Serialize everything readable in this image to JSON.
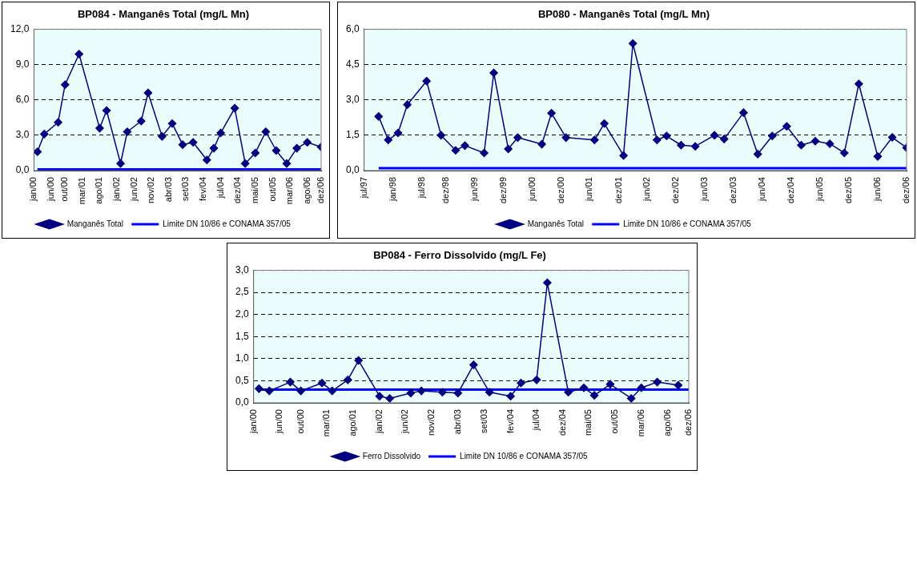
{
  "chart_data": [
    {
      "type": "line",
      "title": "BP084 - Manganês Total (mg/L Mn)",
      "xlim": [
        "2000-01",
        "2006-12"
      ],
      "xticks": [
        {
          "value": "2000-01",
          "label": "jan/00"
        },
        {
          "value": "2000-06",
          "label": "jun/00"
        },
        {
          "value": "2000-10",
          "label": "out/00"
        },
        {
          "value": "2001-03",
          "label": "mar/01"
        },
        {
          "value": "2001-08",
          "label": "ago/01"
        },
        {
          "value": "2002-01",
          "label": "jan/02"
        },
        {
          "value": "2002-06",
          "label": "jun/02"
        },
        {
          "value": "2002-11",
          "label": "nov/02"
        },
        {
          "value": "2003-04",
          "label": "abr/03"
        },
        {
          "value": "2003-09",
          "label": "set/03"
        },
        {
          "value": "2004-02",
          "label": "fev/04"
        },
        {
          "value": "2004-07",
          "label": "jul/04"
        },
        {
          "value": "2004-12",
          "label": "dez/04"
        },
        {
          "value": "2005-05",
          "label": "mai/05"
        },
        {
          "value": "2005-10",
          "label": "out/05"
        },
        {
          "value": "2006-03",
          "label": "mar/06"
        },
        {
          "value": "2006-08",
          "label": "ago/06"
        },
        {
          "value": "2006-12",
          "label": "dez/06"
        }
      ],
      "ylim": [
        0,
        12
      ],
      "yticks": [
        {
          "value": 0,
          "label": "0,0"
        },
        {
          "value": 3,
          "label": "3,0"
        },
        {
          "value": 6,
          "label": "6,0"
        },
        {
          "value": 9,
          "label": "9,0"
        },
        {
          "value": 12,
          "label": "12,0"
        }
      ],
      "grid": "y",
      "legend": "bottom",
      "series": [
        {
          "name": "Manganês Total",
          "color": "#000080",
          "marker": "diamond",
          "x": [
            "2000-02",
            "2000-04",
            "2000-08",
            "2000-10",
            "2001-02",
            "2001-08",
            "2001-10",
            "2002-02",
            "2002-04",
            "2002-08",
            "2002-10",
            "2003-02",
            "2003-05",
            "2003-08",
            "2003-11",
            "2004-03",
            "2004-05",
            "2004-07",
            "2004-11",
            "2005-02",
            "2005-05",
            "2005-08",
            "2005-11",
            "2006-02",
            "2006-05",
            "2006-08",
            "2006-12"
          ],
          "values": [
            1.6,
            3.1,
            4.1,
            7.3,
            9.9,
            3.6,
            5.1,
            0.6,
            3.3,
            4.2,
            6.6,
            2.9,
            4.0,
            2.2,
            2.4,
            0.9,
            1.9,
            3.2,
            5.3,
            0.6,
            1.5,
            3.3,
            1.7,
            0.6,
            1.9,
            2.4,
            2.0
          ]
        },
        {
          "name": "Limite DN 10/86 e CONAMA 357/05",
          "color": "#0000ff",
          "marker": "none",
          "x": [
            "2000-02",
            "2006-12"
          ],
          "values": [
            0.1,
            0.1
          ]
        }
      ]
    },
    {
      "type": "line",
      "title": "BP080 - Manganês Total (mg/L Mn)",
      "xlim": [
        "1997-07",
        "2006-12"
      ],
      "xticks": [
        {
          "value": "1997-07",
          "label": "jul/97"
        },
        {
          "value": "1998-01",
          "label": "jan/98"
        },
        {
          "value": "1998-07",
          "label": "jul/98"
        },
        {
          "value": "1998-12",
          "label": "dez/98"
        },
        {
          "value": "1999-06",
          "label": "jun/99"
        },
        {
          "value": "1999-12",
          "label": "dez/99"
        },
        {
          "value": "2000-06",
          "label": "jun/00"
        },
        {
          "value": "2000-12",
          "label": "dez/00"
        },
        {
          "value": "2001-06",
          "label": "jun/01"
        },
        {
          "value": "2001-12",
          "label": "dez/01"
        },
        {
          "value": "2002-06",
          "label": "jun/02"
        },
        {
          "value": "2002-12",
          "label": "dez/02"
        },
        {
          "value": "2003-06",
          "label": "jun/03"
        },
        {
          "value": "2003-12",
          "label": "dez/03"
        },
        {
          "value": "2004-06",
          "label": "jun/04"
        },
        {
          "value": "2004-12",
          "label": "dez/04"
        },
        {
          "value": "2005-06",
          "label": "jun/05"
        },
        {
          "value": "2005-12",
          "label": "dez/05"
        },
        {
          "value": "2006-06",
          "label": "jun/06"
        },
        {
          "value": "2006-12",
          "label": "dez/06"
        }
      ],
      "ylim": [
        0,
        6
      ],
      "yticks": [
        {
          "value": 0,
          "label": "0,0"
        },
        {
          "value": 1.5,
          "label": "1,5"
        },
        {
          "value": 3,
          "label": "3,0"
        },
        {
          "value": 4.5,
          "label": "4,5"
        },
        {
          "value": 6,
          "label": "6,0"
        }
      ],
      "grid": "y",
      "legend": "bottom",
      "series": [
        {
          "name": "Manganês Total",
          "color": "#000080",
          "marker": "diamond",
          "x": [
            "1997-10",
            "1997-12",
            "1998-02",
            "1998-04",
            "1998-08",
            "1998-11",
            "1999-02",
            "1999-04",
            "1999-08",
            "1999-10",
            "2000-01",
            "2000-03",
            "2000-08",
            "2000-10",
            "2001-01",
            "2001-07",
            "2001-09",
            "2002-01",
            "2002-03",
            "2002-08",
            "2002-10",
            "2003-01",
            "2003-04",
            "2003-08",
            "2003-10",
            "2004-02",
            "2004-05",
            "2004-08",
            "2004-11",
            "2005-02",
            "2005-05",
            "2005-08",
            "2005-11",
            "2006-02",
            "2006-06",
            "2006-09",
            "2006-12"
          ],
          "values": [
            2.3,
            1.3,
            1.6,
            2.8,
            3.8,
            1.5,
            0.86,
            1.06,
            0.75,
            4.15,
            0.92,
            1.4,
            1.12,
            2.44,
            1.4,
            1.3,
            2.0,
            0.64,
            5.4,
            1.3,
            1.47,
            1.08,
            1.03,
            1.5,
            1.34,
            2.46,
            0.7,
            1.47,
            1.88,
            1.08,
            1.25,
            1.14,
            0.75,
            3.68,
            0.6,
            1.41,
            0.97
          ]
        },
        {
          "name": "Limite DN 10/86 e CONAMA 357/05",
          "color": "#0000ff",
          "marker": "none",
          "x": [
            "1997-10",
            "2006-12"
          ],
          "values": [
            0.1,
            0.1
          ]
        }
      ]
    },
    {
      "type": "line",
      "title": "BP084 - Ferro Dissolvido (mg/L Fe)",
      "xlim": [
        "2000-01",
        "2006-12"
      ],
      "xticks": [
        {
          "value": "2000-01",
          "label": "jan/00"
        },
        {
          "value": "2000-06",
          "label": "jun/00"
        },
        {
          "value": "2000-10",
          "label": "out/00"
        },
        {
          "value": "2001-03",
          "label": "mar/01"
        },
        {
          "value": "2001-08",
          "label": "ago/01"
        },
        {
          "value": "2002-01",
          "label": "jan/02"
        },
        {
          "value": "2002-06",
          "label": "jun/02"
        },
        {
          "value": "2002-11",
          "label": "nov/02"
        },
        {
          "value": "2003-04",
          "label": "abr/03"
        },
        {
          "value": "2003-09",
          "label": "set/03"
        },
        {
          "value": "2004-02",
          "label": "fev/04"
        },
        {
          "value": "2004-07",
          "label": "jul/04"
        },
        {
          "value": "2004-12",
          "label": "dez/04"
        },
        {
          "value": "2005-05",
          "label": "mai/05"
        },
        {
          "value": "2005-10",
          "label": "out/05"
        },
        {
          "value": "2006-03",
          "label": "mar/06"
        },
        {
          "value": "2006-08",
          "label": "ago/06"
        },
        {
          "value": "2006-12",
          "label": "dez/06"
        }
      ],
      "ylim": [
        0,
        3
      ],
      "yticks": [
        {
          "value": 0,
          "label": "0,0"
        },
        {
          "value": 0.5,
          "label": "0,5"
        },
        {
          "value": 1,
          "label": "1,0"
        },
        {
          "value": 1.5,
          "label": "1,5"
        },
        {
          "value": 2,
          "label": "2,0"
        },
        {
          "value": 2.5,
          "label": "2,5"
        },
        {
          "value": 3,
          "label": "3,0"
        }
      ],
      "grid": "y",
      "legend": "bottom",
      "series": [
        {
          "name": "Ferro Dissolvido",
          "color": "#000080",
          "marker": "diamond",
          "x": [
            "2000-02",
            "2000-04",
            "2000-08",
            "2000-10",
            "2001-02",
            "2001-04",
            "2001-07",
            "2001-09",
            "2002-01",
            "2002-03",
            "2002-07",
            "2002-09",
            "2003-01",
            "2003-04",
            "2003-07",
            "2003-10",
            "2004-02",
            "2004-04",
            "2004-07",
            "2004-09",
            "2005-01",
            "2005-04",
            "2005-06",
            "2005-09",
            "2006-01",
            "2006-03",
            "2006-06",
            "2006-10"
          ],
          "values": [
            0.32,
            0.27,
            0.47,
            0.27,
            0.45,
            0.27,
            0.52,
            0.96,
            0.15,
            0.1,
            0.22,
            0.27,
            0.24,
            0.22,
            0.86,
            0.24,
            0.15,
            0.45,
            0.52,
            2.72,
            0.24,
            0.34,
            0.17,
            0.42,
            0.1,
            0.34,
            0.47,
            0.4
          ]
        },
        {
          "name": "Limite DN 10/86 e CONAMA 357/05",
          "color": "#0000ff",
          "marker": "none",
          "x": [
            "2000-02",
            "2006-12"
          ],
          "values": [
            0.3,
            0.3
          ]
        }
      ]
    }
  ]
}
